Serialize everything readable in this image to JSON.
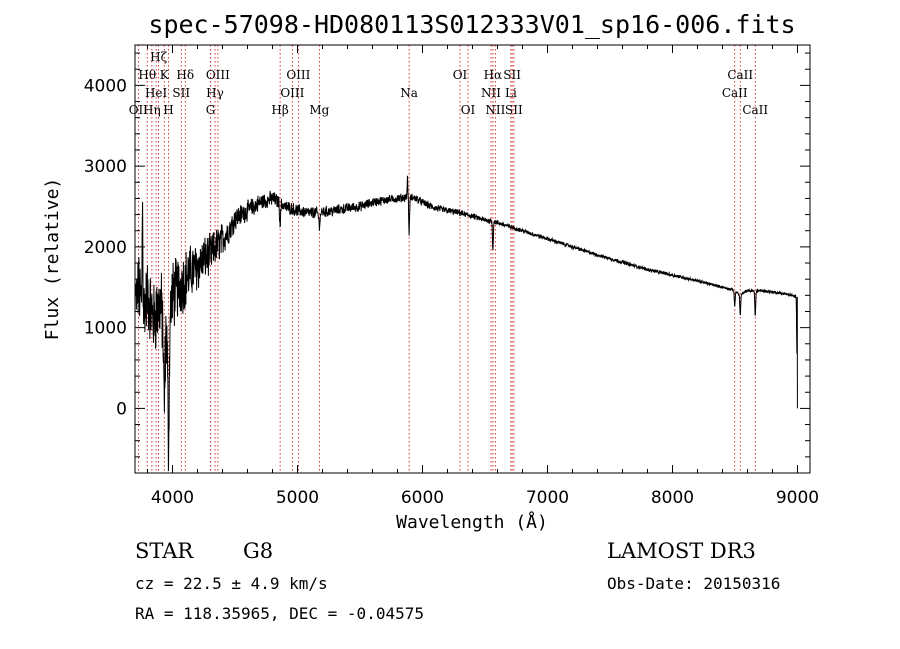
{
  "chart_data": {
    "type": "line",
    "title": "spec-57098-HD080113S012333V01_sp16-006.fits",
    "xlabel": "Wavelength (Å)",
    "ylabel": "Flux (relative)",
    "xlim": [
      3700,
      9100
    ],
    "ylim": [
      -800,
      4500
    ],
    "x_ticks": [
      4000,
      5000,
      6000,
      7000,
      8000,
      9000
    ],
    "x_tick_labels": [
      "4000",
      "5000",
      "6000",
      "7000",
      "8000",
      "9000"
    ],
    "y_ticks": [
      0,
      1000,
      2000,
      3000,
      4000
    ],
    "y_tick_labels": [
      "0",
      "1000",
      "2000",
      "3000",
      "4000"
    ],
    "grid": false,
    "spectrum_anchors": {
      "x": [
        3700,
        3730,
        3760,
        3800,
        3850,
        3900,
        3950,
        4000,
        4050,
        4100,
        4150,
        4200,
        4250,
        4300,
        4350,
        4400,
        4450,
        4500,
        4600,
        4700,
        4800,
        4860,
        4900,
        5000,
        5100,
        5200,
        5300,
        5400,
        5500,
        5600,
        5700,
        5800,
        5890,
        5950,
        6000,
        6100,
        6200,
        6300,
        6400,
        6500,
        6560,
        6600,
        6700,
        6800,
        7000,
        7200,
        7400,
        7600,
        7800,
        8000,
        8200,
        8400,
        8500,
        8540,
        8600,
        8660,
        8700,
        8800,
        8900,
        8990,
        9000
      ],
      "y": [
        1300,
        1500,
        1200,
        1400,
        1100,
        1300,
        900,
        1400,
        1500,
        1600,
        1700,
        1750,
        1850,
        1900,
        2000,
        2100,
        2200,
        2350,
        2450,
        2550,
        2600,
        2550,
        2500,
        2450,
        2420,
        2430,
        2450,
        2480,
        2500,
        2550,
        2580,
        2600,
        2620,
        2600,
        2550,
        2480,
        2450,
        2420,
        2380,
        2330,
        2320,
        2300,
        2250,
        2200,
        2100,
        2000,
        1900,
        1810,
        1720,
        1650,
        1580,
        1500,
        1460,
        1400,
        1460,
        1450,
        1460,
        1440,
        1420,
        1380,
        0
      ]
    },
    "noise_amplitude": {
      "x": [
        3700,
        3900,
        4000,
        4200,
        4400,
        4500,
        4900,
        5600,
        6100,
        6600,
        7200,
        8400,
        9000
      ],
      "amp": [
        350,
        420,
        380,
        260,
        180,
        120,
        70,
        50,
        40,
        25,
        20,
        15,
        15
      ]
    },
    "absorption_features": [
      {
        "x": 3934,
        "depth": 1000,
        "width": 8
      },
      {
        "x": 3968,
        "depth": 1500,
        "width": 8
      },
      {
        "x": 4861,
        "depth": 250,
        "width": 6
      },
      {
        "x": 5175,
        "depth": 150,
        "width": 8
      },
      {
        "x": 5893,
        "depth": 450,
        "width": 5
      },
      {
        "x": 6563,
        "depth": 350,
        "width": 5
      },
      {
        "x": 8498,
        "depth": 200,
        "width": 5
      },
      {
        "x": 8542,
        "depth": 250,
        "width": 5
      },
      {
        "x": 8662,
        "depth": 300,
        "width": 5
      }
    ],
    "emission_features": [
      {
        "x": 5880,
        "height": 250,
        "width": 4
      },
      {
        "x": 3760,
        "height": 1400,
        "width": 4
      }
    ],
    "spectral_lines": [
      {
        "x": 3727,
        "label": "OII",
        "row": 3
      },
      {
        "x": 3798,
        "label": "Hθ",
        "row": 1
      },
      {
        "x": 3835,
        "label": "Hη",
        "row": 3
      },
      {
        "x": 3869,
        "label": "HeI",
        "row": 2
      },
      {
        "x": 3889,
        "label": "Hζ",
        "row": 0
      },
      {
        "x": 3934,
        "label": "K",
        "row": 1
      },
      {
        "x": 3968,
        "label": "H",
        "row": 3
      },
      {
        "x": 4070,
        "label": "SII",
        "row": 2
      },
      {
        "x": 4102,
        "label": "Hδ",
        "row": 1
      },
      {
        "x": 4304,
        "label": "G",
        "row": 3
      },
      {
        "x": 4340,
        "label": "Hγ",
        "row": 2
      },
      {
        "x": 4363,
        "label": "OIII",
        "row": 1
      },
      {
        "x": 4861,
        "label": "Hβ",
        "row": 3
      },
      {
        "x": 4959,
        "label": "OIII",
        "row": 2
      },
      {
        "x": 5007,
        "label": "OIII",
        "row": 1
      },
      {
        "x": 5175,
        "label": "Mg",
        "row": 3
      },
      {
        "x": 5893,
        "label": "Na",
        "row": 2
      },
      {
        "x": 6300,
        "label": "OI",
        "row": 1
      },
      {
        "x": 6364,
        "label": "OI",
        "row": 3
      },
      {
        "x": 6548,
        "label": "NII",
        "row": 2
      },
      {
        "x": 6563,
        "label": "Hα",
        "row": 1
      },
      {
        "x": 6583,
        "label": "NII",
        "row": 3
      },
      {
        "x": 6707,
        "label": "Li",
        "row": 2
      },
      {
        "x": 6717,
        "label": "SII",
        "row": 1
      },
      {
        "x": 6731,
        "label": "SII",
        "row": 3
      },
      {
        "x": 8498,
        "label": "CaII",
        "row": 2
      },
      {
        "x": 8542,
        "label": "CaII",
        "row": 1
      },
      {
        "x": 8662,
        "label": "CaII",
        "row": 3
      }
    ],
    "colors": {
      "spectrum": "#000000",
      "line_markers": "#cc0000",
      "axes": "#000000",
      "background": "#ffffff"
    }
  },
  "info": {
    "class": "STAR",
    "subclass": "G8",
    "survey": "LAMOST DR3",
    "redshift": "cz = 22.5 ± 4.9 km/s",
    "obs_date": "Obs-Date: 20150316",
    "coords": "RA = 118.35965, DEC =  -0.04575"
  }
}
